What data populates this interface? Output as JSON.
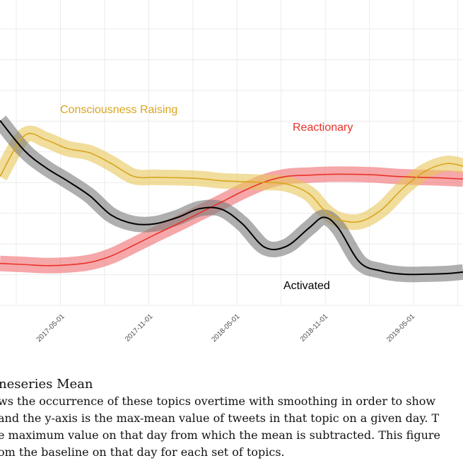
{
  "chart_data": {
    "type": "line",
    "title": "",
    "xlabel": "",
    "ylabel": "",
    "x_ticks": [
      "2017-05-01",
      "2017-11-01",
      "2018-05-01",
      "2018-11-01",
      "2019-05-01"
    ],
    "x_range": [
      "2016-12-26",
      "2019-08-18"
    ],
    "ylim": [
      0,
      1
    ],
    "grid": true,
    "series": [
      {
        "name": "Consciousness Raising",
        "color": "#d9a520",
        "band_color": "#e8c65a",
        "x": [
          "2016-12-26",
          "2017-02-15",
          "2017-04-01",
          "2017-05-15",
          "2017-07-01",
          "2017-08-15",
          "2017-10-01",
          "2017-11-15",
          "2018-01-01",
          "2018-02-15",
          "2018-04-01",
          "2018-05-15",
          "2018-07-01",
          "2018-08-15",
          "2018-10-01",
          "2018-11-01",
          "2018-12-01",
          "2019-01-15",
          "2019-03-01",
          "2019-04-15",
          "2019-06-01",
          "2019-07-15",
          "2019-08-18"
        ],
        "values": [
          0.6,
          0.79,
          0.77,
          0.73,
          0.71,
          0.66,
          0.6,
          0.596,
          0.594,
          0.59,
          0.58,
          0.576,
          0.572,
          0.565,
          0.52,
          0.445,
          0.4,
          0.39,
          0.445,
          0.545,
          0.625,
          0.66,
          0.648
        ]
      },
      {
        "name": "Reactionary",
        "color": "#e8332a",
        "band_color": "#f06d70",
        "x": [
          "2016-12-26",
          "2017-02-15",
          "2017-04-01",
          "2017-05-15",
          "2017-07-01",
          "2017-08-15",
          "2017-10-01",
          "2017-11-15",
          "2018-01-01",
          "2018-02-15",
          "2018-04-01",
          "2018-05-15",
          "2018-07-01",
          "2018-08-15",
          "2018-10-01",
          "2018-11-15",
          "2019-01-01",
          "2019-02-15",
          "2019-04-01",
          "2019-05-15",
          "2019-07-01",
          "2019-08-18"
        ],
        "values": [
          0.195,
          0.19,
          0.185,
          0.188,
          0.2,
          0.23,
          0.28,
          0.33,
          0.38,
          0.43,
          0.48,
          0.53,
          0.575,
          0.6,
          0.606,
          0.61,
          0.61,
          0.607,
          0.6,
          0.596,
          0.593,
          0.588
        ]
      },
      {
        "name": "Activated",
        "color": "#000000",
        "band_color": "#7a7a7a",
        "x": [
          "2016-12-26",
          "2017-02-15",
          "2017-04-01",
          "2017-05-15",
          "2017-07-01",
          "2017-08-15",
          "2017-10-01",
          "2017-11-15",
          "2018-01-01",
          "2018-02-15",
          "2018-04-01",
          "2018-05-15",
          "2018-07-01",
          "2018-08-15",
          "2018-10-01",
          "2018-11-01",
          "2018-12-01",
          "2019-01-15",
          "2019-03-01",
          "2019-04-15",
          "2019-06-01",
          "2019-07-15",
          "2019-08-18"
        ],
        "values": [
          0.86,
          0.72,
          0.64,
          0.58,
          0.51,
          0.42,
          0.38,
          0.38,
          0.41,
          0.45,
          0.448,
          0.38,
          0.27,
          0.275,
          0.36,
          0.41,
          0.36,
          0.2,
          0.16,
          0.145,
          0.145,
          0.148,
          0.155
        ]
      }
    ]
  },
  "caption": {
    "title": "neseries Mean",
    "lines": [
      "ws the occurrence of these topics overtime with smoothing in order to show",
      "and the y-axis is the max-mean value of tweets in that topic on a given day.  T",
      "e maximum value on that day from which the mean is subtracted.  This figure",
      "om the baseline on that day for each set of topics."
    ]
  }
}
